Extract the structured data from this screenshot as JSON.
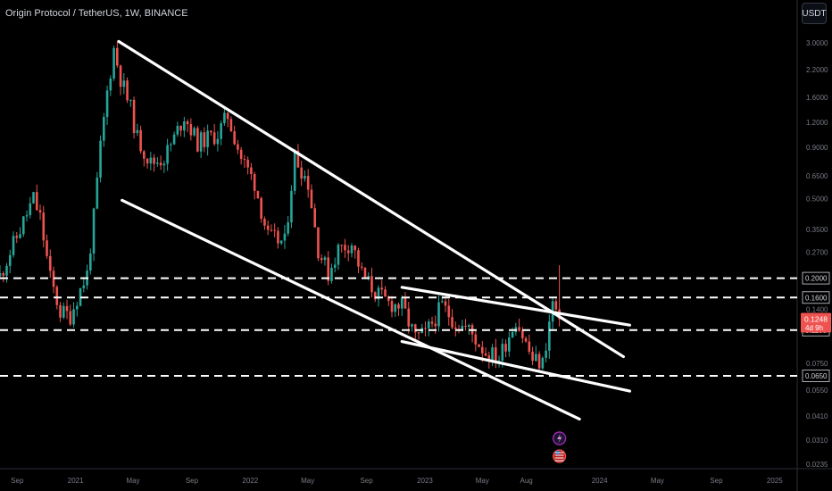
{
  "header": {
    "title": "Origin Protocol / TetherUS, 1W, BINANCE",
    "currency_label": "USDT"
  },
  "colors": {
    "up": "#26a69a",
    "down": "#ef5350",
    "drawing": "#ffffff",
    "axis_text": "#787b86",
    "bg": "#000000",
    "price_tag_bg": "#ef5350"
  },
  "chart_data": {
    "type": "candlestick",
    "y_scale": "log",
    "ylim": [
      0.0235,
      4.0
    ],
    "xlim": [
      "2020-07-27",
      "2025-02-17"
    ],
    "y_ticks": [
      "3.0000",
      "2.2000",
      "1.6000",
      "1.2000",
      "0.9000",
      "0.6500",
      "0.5000",
      "0.3500",
      "0.2700",
      "0.2000",
      "0.1600",
      "0.1400",
      "0.1248",
      "0.1100",
      "0.0750",
      "0.0650",
      "0.0550",
      "0.0410",
      "0.0310",
      "0.0235"
    ],
    "x_ticks": [
      {
        "label": "Sep",
        "date": "2020-09-01"
      },
      {
        "label": "2021",
        "date": "2021-01-01"
      },
      {
        "label": "May",
        "date": "2021-05-01"
      },
      {
        "label": "Sep",
        "date": "2021-09-01"
      },
      {
        "label": "2022",
        "date": "2022-01-01"
      },
      {
        "label": "May",
        "date": "2022-05-01"
      },
      {
        "label": "Sep",
        "date": "2022-09-01"
      },
      {
        "label": "2023",
        "date": "2023-01-01"
      },
      {
        "label": "May",
        "date": "2023-05-01"
      },
      {
        "label": "Aug",
        "date": "2023-08-01"
      },
      {
        "label": "2024",
        "date": "2024-01-01"
      },
      {
        "label": "May",
        "date": "2024-05-01"
      },
      {
        "label": "Sep",
        "date": "2024-09-01"
      },
      {
        "label": "2025",
        "date": "2025-01-01"
      }
    ],
    "horizontal_levels": [
      0.2,
      0.16,
      0.11,
      0.065
    ],
    "level_labels": [
      {
        "value": 0.2,
        "text": "0.2000"
      },
      {
        "value": 0.16,
        "text": "0.1600"
      },
      {
        "value": 0.11,
        "text": "0.1100"
      },
      {
        "value": 0.065,
        "text": "0.0650"
      }
    ],
    "last_price": {
      "value": 0.1248,
      "text": "0.1248",
      "countdown": "4d 9h"
    },
    "trendlines": [
      {
        "start": [
          "2021-04-01",
          3.05
        ],
        "end": [
          "2024-02-20",
          0.081
        ]
      },
      {
        "start": [
          "2021-04-08",
          0.49
        ],
        "end": [
          "2023-11-20",
          0.0395
        ]
      },
      {
        "start": [
          "2022-11-14",
          0.18
        ],
        "end": [
          "2024-03-04",
          0.1165
        ]
      },
      {
        "start": [
          "2022-11-14",
          0.0965
        ],
        "end": [
          "2024-03-04",
          0.0545
        ]
      }
    ],
    "anchors": [
      {
        "date": "2020-07-27",
        "close": 0.205
      },
      {
        "date": "2020-08-17",
        "close": 0.27
      },
      {
        "date": "2020-09-07",
        "close": 0.35
      },
      {
        "date": "2020-10-05",
        "close": 0.5
      },
      {
        "date": "2020-10-19",
        "close": 0.4
      },
      {
        "date": "2020-11-09",
        "close": 0.2
      },
      {
        "date": "2020-11-30",
        "close": 0.135
      },
      {
        "date": "2020-12-21",
        "close": 0.13
      },
      {
        "date": "2021-01-04",
        "close": 0.16
      },
      {
        "date": "2021-01-25",
        "close": 0.21
      },
      {
        "date": "2021-02-08",
        "close": 0.4
      },
      {
        "date": "2021-02-22",
        "close": 0.9
      },
      {
        "date": "2021-03-08",
        "close": 1.7
      },
      {
        "date": "2021-03-22",
        "close": 2.8
      },
      {
        "date": "2021-04-05",
        "close": 2.0
      },
      {
        "date": "2021-04-26",
        "close": 1.4
      },
      {
        "date": "2021-05-10",
        "close": 1.0
      },
      {
        "date": "2021-06-07",
        "close": 0.75
      },
      {
        "date": "2021-07-05",
        "close": 0.8
      },
      {
        "date": "2021-07-26",
        "close": 1.0
      },
      {
        "date": "2021-08-16",
        "close": 1.3
      },
      {
        "date": "2021-09-13",
        "close": 0.95
      },
      {
        "date": "2021-10-25",
        "close": 1.05
      },
      {
        "date": "2021-11-15",
        "close": 1.3
      },
      {
        "date": "2021-12-13",
        "close": 0.8
      },
      {
        "date": "2022-01-10",
        "close": 0.6
      },
      {
        "date": "2022-02-07",
        "close": 0.32
      },
      {
        "date": "2022-03-14",
        "close": 0.3
      },
      {
        "date": "2022-04-04",
        "close": 0.82
      },
      {
        "date": "2022-05-02",
        "close": 0.6
      },
      {
        "date": "2022-05-23",
        "close": 0.28
      },
      {
        "date": "2022-06-13",
        "close": 0.21
      },
      {
        "date": "2022-07-04",
        "close": 0.28
      },
      {
        "date": "2022-08-01",
        "close": 0.3
      },
      {
        "date": "2022-08-22",
        "close": 0.21
      },
      {
        "date": "2022-09-19",
        "close": 0.17
      },
      {
        "date": "2022-10-17",
        "close": 0.15
      },
      {
        "date": "2022-11-14",
        "close": 0.145
      },
      {
        "date": "2022-12-12",
        "close": 0.1
      },
      {
        "date": "2023-01-02",
        "close": 0.105
      },
      {
        "date": "2023-02-06",
        "close": 0.145
      },
      {
        "date": "2023-03-06",
        "close": 0.12
      },
      {
        "date": "2023-04-03",
        "close": 0.11
      },
      {
        "date": "2023-05-08",
        "close": 0.085
      },
      {
        "date": "2023-06-05",
        "close": 0.08
      },
      {
        "date": "2023-07-10",
        "close": 0.125
      },
      {
        "date": "2023-08-14",
        "close": 0.078
      },
      {
        "date": "2023-09-04",
        "close": 0.075
      },
      {
        "date": "2023-09-25",
        "close": 0.15
      },
      {
        "date": "2023-10-09",
        "close": 0.1248
      }
    ]
  },
  "events": [
    {
      "icon": "lightning-icon",
      "date": "2023-10-09"
    },
    {
      "icon": "us-flag-icon",
      "date": "2023-10-09"
    }
  ]
}
